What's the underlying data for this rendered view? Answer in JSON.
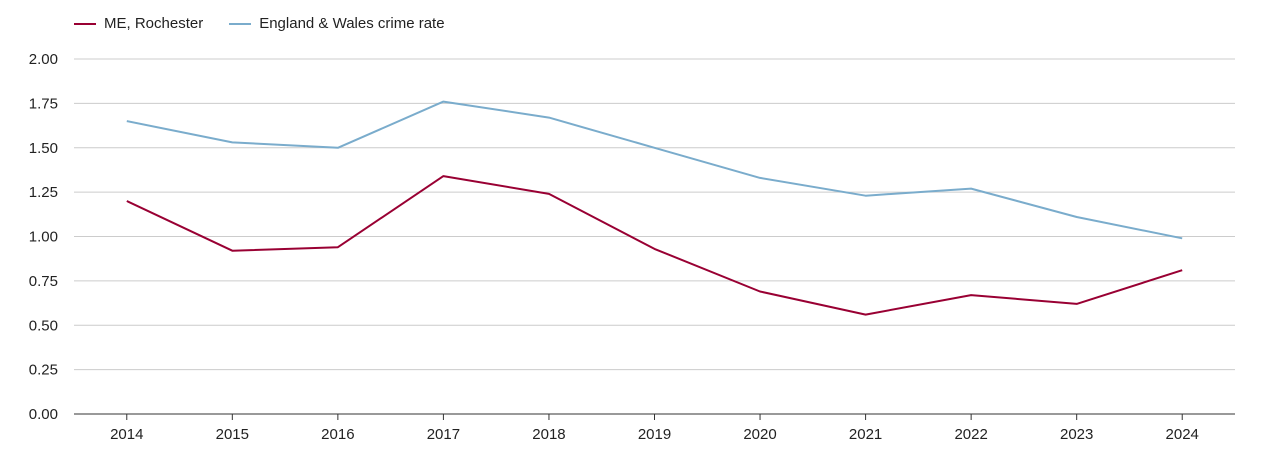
{
  "chart_data": {
    "type": "line",
    "categories": [
      "2014",
      "2015",
      "2016",
      "2017",
      "2018",
      "2019",
      "2020",
      "2021",
      "2022",
      "2023",
      "2024"
    ],
    "series": [
      {
        "name": "ME, Rochester",
        "color": "#990033",
        "values": [
          1.2,
          0.92,
          0.94,
          1.34,
          1.24,
          0.93,
          0.69,
          0.56,
          0.67,
          0.62,
          0.81
        ]
      },
      {
        "name": "England & Wales crime rate",
        "color": "#7aaccc",
        "values": [
          1.65,
          1.53,
          1.5,
          1.76,
          1.67,
          1.5,
          1.33,
          1.23,
          1.27,
          1.11,
          0.99
        ]
      }
    ],
    "ylim": [
      0,
      2
    ],
    "yticks": [
      "0.00",
      "0.25",
      "0.50",
      "0.75",
      "1.00",
      "1.25",
      "1.50",
      "1.75",
      "2.00"
    ],
    "grid": true,
    "legend_position": "top-left"
  }
}
